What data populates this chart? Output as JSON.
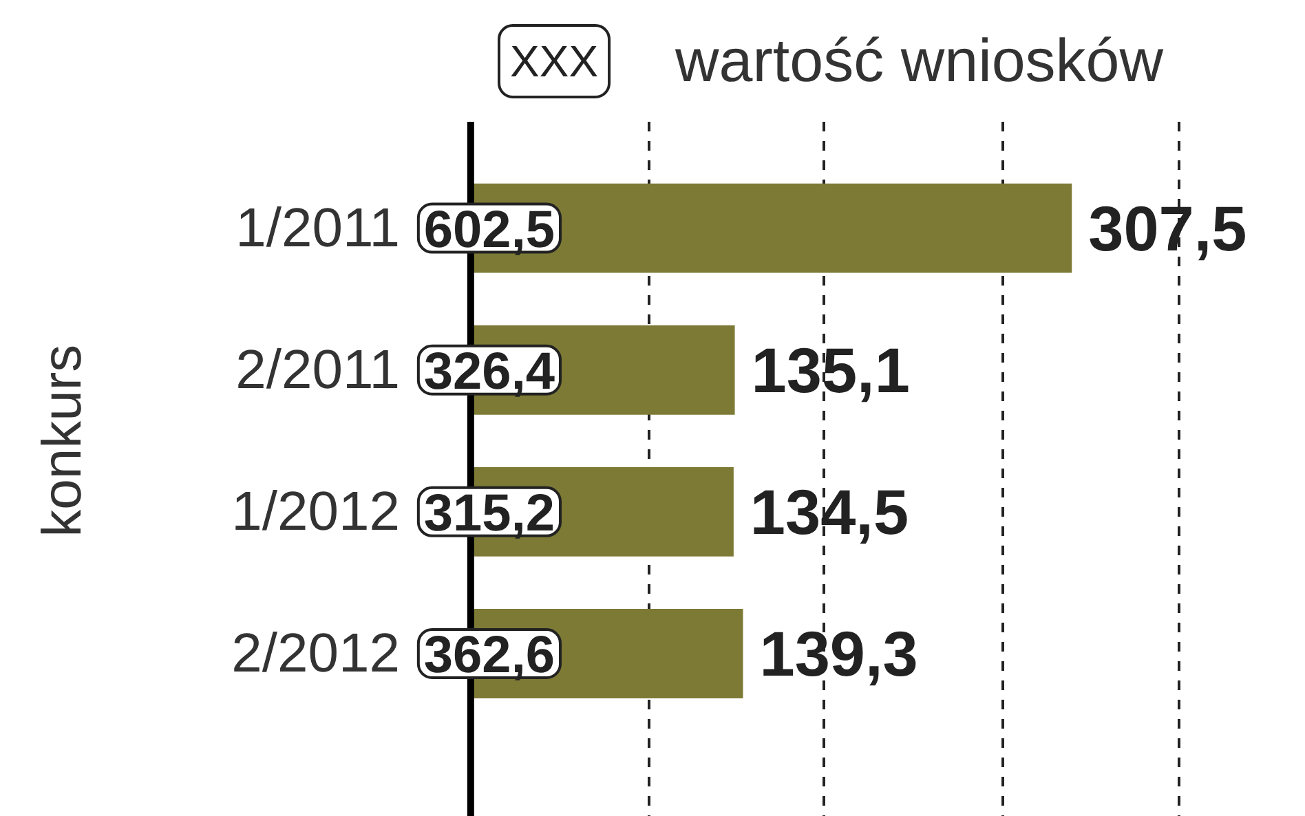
{
  "chart_data": {
    "type": "bar",
    "orientation": "horizontal",
    "ylabel": "konkurs",
    "categories": [
      "1/2011",
      "2/2011",
      "1/2012",
      "2/2012"
    ],
    "values": [
      307.5,
      135.1,
      134.5,
      139.3
    ],
    "value_labels": [
      "307,5",
      "135,1",
      "134,5",
      "139,3"
    ],
    "color": "#7d7a35",
    "xticks": [
      {
        "value": 91,
        "label": null
      },
      {
        "value": 181,
        "label": null
      },
      {
        "value": 272,
        "label": null
      },
      {
        "value": 362,
        "label": null
      }
    ],
    "grid": "x",
    "tick_labels": "y",
    "annotations": [
      "602,5",
      "326,4",
      "315,2",
      "362,6",
      "XXX",
      "wartość wniosków"
    ]
  }
}
